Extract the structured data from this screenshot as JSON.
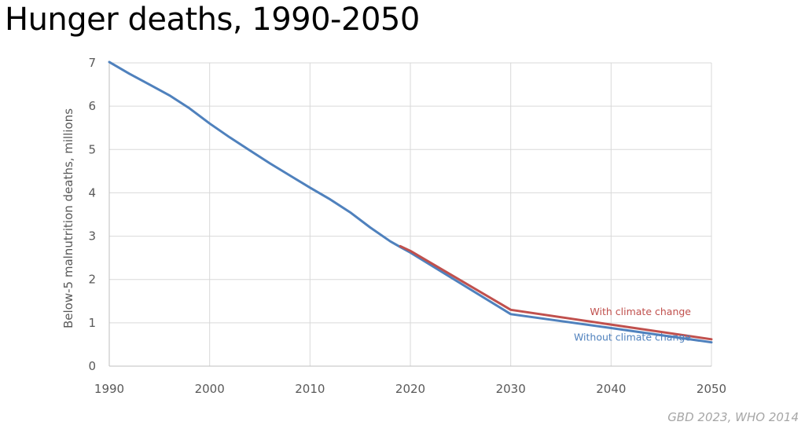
{
  "title": "Hunger deaths, 1990-2050",
  "source": "GBD 2023, WHO 2014",
  "chart_data": {
    "type": "line",
    "title": "Hunger deaths, 1990-2050",
    "xlabel": "",
    "ylabel": "Below-5 malnutrition deaths, millions",
    "xlim": [
      1990,
      2050
    ],
    "ylim": [
      0,
      7
    ],
    "xticks": [
      1990,
      2000,
      2010,
      2020,
      2030,
      2040,
      2050
    ],
    "yticks": [
      0,
      1,
      2,
      3,
      4,
      5,
      6,
      7
    ],
    "grid": true,
    "series": [
      {
        "name": "Without climate change",
        "color": "#4f81bd",
        "x": [
          1990,
          1992,
          1994,
          1996,
          1998,
          2000,
          2002,
          2004,
          2006,
          2008,
          2010,
          2012,
          2014,
          2016,
          2018,
          2019,
          2020,
          2030,
          2040,
          2050
        ],
        "y": [
          7.02,
          6.75,
          6.5,
          6.25,
          5.95,
          5.6,
          5.28,
          4.98,
          4.68,
          4.4,
          4.12,
          3.85,
          3.55,
          3.2,
          2.88,
          2.75,
          2.62,
          1.2,
          0.88,
          0.55
        ]
      },
      {
        "name": "With climate change",
        "color": "#c0504d",
        "x": [
          2019,
          2020,
          2030,
          2040,
          2050
        ],
        "y": [
          2.77,
          2.66,
          1.3,
          0.96,
          0.62
        ]
      }
    ]
  }
}
